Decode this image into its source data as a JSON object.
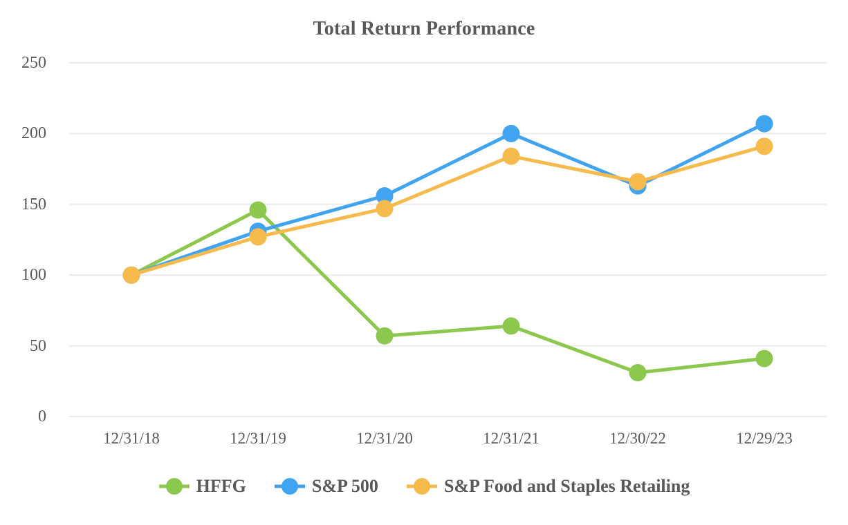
{
  "chart_data": {
    "type": "line",
    "title": "Total Return Performance",
    "categories": [
      "12/31/18",
      "12/31/19",
      "12/31/20",
      "12/31/21",
      "12/30/22",
      "12/29/23"
    ],
    "series": [
      {
        "name": "HFFG",
        "color": "#8CC84E",
        "values": [
          100,
          146,
          57,
          64,
          31,
          41
        ]
      },
      {
        "name": "S&P 500",
        "color": "#41A4F1",
        "values": [
          100,
          131,
          156,
          200,
          163,
          207
        ]
      },
      {
        "name": "S&P Food and Staples Retailing",
        "color": "#F7BA4D",
        "values": [
          100,
          127,
          147,
          184,
          166,
          191
        ]
      }
    ],
    "yticks": [
      0,
      50,
      100,
      150,
      200,
      250
    ],
    "ylim": [
      0,
      250
    ],
    "xlabel": "",
    "ylabel": "",
    "grid": "horizontal",
    "grid_color": "#EBEBEB",
    "text_color": "#595959",
    "background": "#FFFFFF",
    "legend_position": "bottom",
    "marker": "circle"
  }
}
